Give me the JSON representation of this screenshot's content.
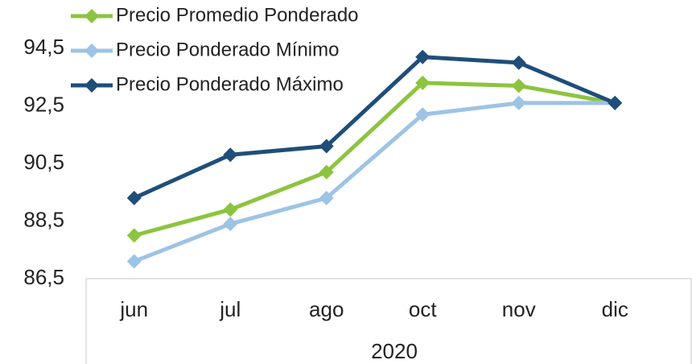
{
  "chart_data": {
    "type": "line",
    "categories": [
      "jun",
      "jul",
      "ago",
      "oct",
      "nov",
      "dic"
    ],
    "category_group": "2020",
    "series": [
      {
        "name": "Precio Promedio Ponderado",
        "color": "#8dc43f",
        "values": [
          88.0,
          88.9,
          90.2,
          93.3,
          93.2,
          92.6
        ]
      },
      {
        "name": "Precio Ponderado Mínimo",
        "color": "#9dc3e6",
        "values": [
          87.1,
          88.4,
          89.3,
          92.2,
          92.6,
          92.6
        ]
      },
      {
        "name": "Precio Ponderado Máximo",
        "color": "#1f4e79",
        "values": [
          89.3,
          90.8,
          91.1,
          94.2,
          94.0,
          92.6
        ]
      }
    ],
    "ylim": [
      86.5,
      94.5
    ],
    "yticks": [
      {
        "value": 86.5,
        "label": "86,5"
      },
      {
        "value": 88.5,
        "label": "88,5"
      },
      {
        "value": 90.5,
        "label": "90,5"
      },
      {
        "value": 92.5,
        "label": "92,5"
      },
      {
        "value": 94.5,
        "label": "94,5"
      }
    ],
    "grid": false,
    "legend": "top-left"
  }
}
